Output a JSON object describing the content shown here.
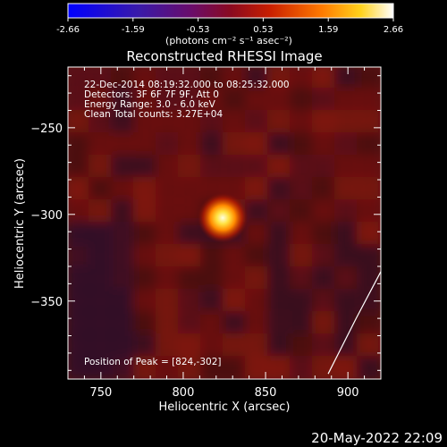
{
  "colorbar": {
    "ticks": [
      "-2.66",
      "-1.59",
      "-0.53",
      "0.53",
      "1.59",
      "2.66"
    ],
    "units": "(photons cm⁻² s⁻¹ asec⁻²)"
  },
  "header": {
    "timestamp": "20-May-2022 22:09"
  },
  "chart_data": {
    "type": "heatmap",
    "title": "Reconstructed RHESSI Image",
    "xlabel": "Heliocentric X (arcsec)",
    "ylabel": "Heliocentric Y (arcsec)",
    "xlim": [
      730,
      920
    ],
    "ylim": [
      -395,
      -215
    ],
    "x_ticks": [
      750,
      800,
      850,
      900
    ],
    "y_ticks": [
      -250,
      -300,
      -350
    ],
    "x_tick_labels": [
      "750",
      "800",
      "850",
      "900"
    ],
    "y_tick_labels": [
      "−250",
      "−300",
      "−350"
    ],
    "clim": [
      -2.66,
      2.66
    ],
    "peak": {
      "x": 824,
      "y": -302
    },
    "limb_curve": [
      [
        888,
        -392
      ],
      [
        905,
        -360
      ],
      [
        920,
        -333
      ]
    ],
    "annotations": {
      "line1": "22-Dec-2014 08:19:32.000 to 08:25:32.000",
      "line2": "Detectors: 3F 6F 7F 9F, Att 0",
      "line3": "Energy Range: 3.0 - 6.0 keV",
      "line4": "Clean    Total counts: 3.27E+04",
      "peak_label": "Position of Peak = [824,-302]"
    }
  }
}
